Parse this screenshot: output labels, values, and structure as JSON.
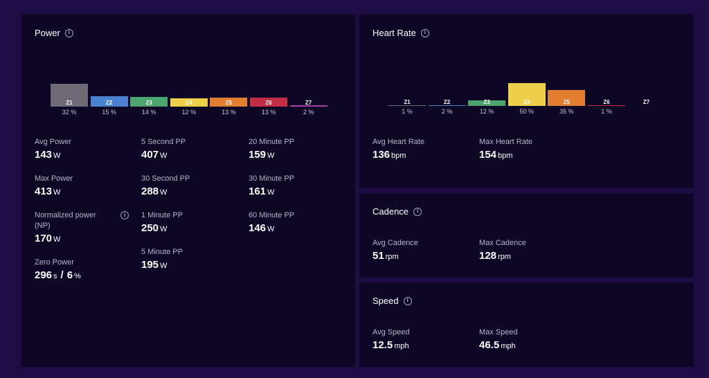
{
  "power": {
    "title": "Power",
    "zones": [
      {
        "name": "Z1",
        "pct_label": "32 %",
        "fraction": 0.32,
        "color": "#6e6b77"
      },
      {
        "name": "Z2",
        "pct_label": "15 %",
        "fraction": 0.15,
        "color": "#4a83d4"
      },
      {
        "name": "Z3",
        "pct_label": "14 %",
        "fraction": 0.14,
        "color": "#4ea46e"
      },
      {
        "name": "Z4",
        "pct_label": "12 %",
        "fraction": 0.12,
        "color": "#efd04b"
      },
      {
        "name": "Z5",
        "pct_label": "13 %",
        "fraction": 0.13,
        "color": "#e17e30"
      },
      {
        "name": "Z6",
        "pct_label": "13 %",
        "fraction": 0.13,
        "color": "#c22d45"
      },
      {
        "name": "Z7",
        "pct_label": "2 %",
        "fraction": 0.02,
        "color": "#a63fa8"
      }
    ],
    "avg": {
      "label": "Avg Power",
      "value": "143",
      "unit": "W"
    },
    "max": {
      "label": "Max Power",
      "value": "413",
      "unit": "W"
    },
    "np": {
      "label": "Normalized power (NP)",
      "value": "170",
      "unit": "W"
    },
    "zero": {
      "label": "Zero Power",
      "value1": "296",
      "unit1": "s",
      "sep": "/",
      "value2": "6",
      "unit2": "%"
    },
    "pp5s": {
      "label": "5 Second PP",
      "value": "407",
      "unit": "W"
    },
    "pp30s": {
      "label": "30 Second PP",
      "value": "288",
      "unit": "W"
    },
    "pp1m": {
      "label": "1 Minute PP",
      "value": "250",
      "unit": "W"
    },
    "pp5m": {
      "label": "5 Minute PP",
      "value": "195",
      "unit": "W"
    },
    "pp20m": {
      "label": "20 Minute PP",
      "value": "159",
      "unit": "W"
    },
    "pp30m": {
      "label": "30 Minute PP",
      "value": "161",
      "unit": "W"
    },
    "pp60m": {
      "label": "60 Minute PP",
      "value": "146",
      "unit": "W"
    }
  },
  "heart_rate": {
    "title": "Heart Rate",
    "zones": [
      {
        "name": "Z1",
        "pct_label": "1 %",
        "fraction": 0.01,
        "color": "#6e6b77"
      },
      {
        "name": "Z2",
        "pct_label": "2 %",
        "fraction": 0.02,
        "color": "#4a83d4"
      },
      {
        "name": "Z3",
        "pct_label": "12 %",
        "fraction": 0.12,
        "color": "#4ea46e"
      },
      {
        "name": "Z4",
        "pct_label": "50 %",
        "fraction": 0.5,
        "color": "#efd04b"
      },
      {
        "name": "Z5",
        "pct_label": "35 %",
        "fraction": 0.35,
        "color": "#e17e30"
      },
      {
        "name": "Z6",
        "pct_label": "1 %",
        "fraction": 0.01,
        "color": "#c22d45"
      },
      {
        "name": "Z7",
        "pct_label": "",
        "fraction": 0,
        "color": "#a63fa8"
      }
    ],
    "avg": {
      "label": "Avg Heart Rate",
      "value": "136",
      "unit": "bpm"
    },
    "max": {
      "label": "Max Heart Rate",
      "value": "154",
      "unit": "bpm"
    }
  },
  "cadence": {
    "title": "Cadence",
    "avg": {
      "label": "Avg Cadence",
      "value": "51",
      "unit": "rpm"
    },
    "max": {
      "label": "Max Cadence",
      "value": "128",
      "unit": "rpm"
    }
  },
  "speed": {
    "title": "Speed",
    "avg": {
      "label": "Avg Speed",
      "value": "12.5",
      "unit": "mph"
    },
    "max": {
      "label": "Max Speed",
      "value": "46.5",
      "unit": "mph"
    }
  },
  "icons": {
    "info": "info-icon"
  }
}
